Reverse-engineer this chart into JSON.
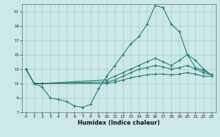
{
  "bg_color": "#cce8e8",
  "grid_color": "#aacccc",
  "line_color": "#1a7a6e",
  "xlabel": "Humidex (Indice chaleur)",
  "xlim": [
    -0.5,
    23.5
  ],
  "ylim": [
    7,
    22
  ],
  "yticks": [
    7,
    9,
    11,
    13,
    15,
    17,
    19,
    21
  ],
  "xticks": [
    0,
    1,
    2,
    3,
    4,
    5,
    6,
    7,
    8,
    9,
    10,
    11,
    12,
    13,
    14,
    15,
    16,
    17,
    18,
    19,
    20,
    21,
    22,
    23
  ],
  "curve1_x": [
    0,
    1,
    2,
    3,
    4,
    5,
    6,
    7,
    8,
    9,
    10,
    11,
    12,
    13,
    14,
    15,
    16,
    17,
    18,
    19,
    20,
    21,
    22,
    23
  ],
  "curve1_y": [
    13.0,
    11.0,
    10.5,
    9.0,
    8.8,
    8.5,
    7.9,
    7.7,
    8.1,
    10.3,
    12.0,
    13.5,
    15.0,
    16.5,
    17.5,
    19.2,
    21.8,
    21.5,
    19.2,
    18.2,
    15.0,
    13.2,
    12.8,
    12.2
  ],
  "curve2_x": [
    0,
    1,
    2,
    10,
    11,
    12,
    13,
    14,
    15,
    16,
    17,
    18,
    19,
    20,
    21,
    22,
    23
  ],
  "curve2_y": [
    13.0,
    11.0,
    11.0,
    11.5,
    12.0,
    12.5,
    13.0,
    13.5,
    14.0,
    14.5,
    14.0,
    13.5,
    14.2,
    15.0,
    14.2,
    13.0,
    12.2
  ],
  "curve3_x": [
    0,
    1,
    2,
    10,
    11,
    12,
    13,
    14,
    15,
    16,
    17,
    18,
    19,
    20,
    21,
    22,
    23
  ],
  "curve3_y": [
    13.0,
    11.0,
    11.0,
    11.2,
    11.5,
    12.0,
    12.5,
    13.0,
    13.2,
    13.5,
    13.3,
    13.0,
    13.2,
    13.5,
    13.0,
    12.5,
    12.2
  ],
  "curve4_x": [
    0,
    1,
    2,
    10,
    11,
    12,
    13,
    14,
    15,
    16,
    17,
    18,
    19,
    20,
    21,
    22,
    23
  ],
  "curve4_y": [
    13.0,
    11.0,
    11.0,
    11.0,
    11.2,
    11.5,
    11.8,
    12.0,
    12.2,
    12.3,
    12.3,
    12.2,
    12.3,
    12.5,
    12.3,
    12.0,
    12.0
  ]
}
